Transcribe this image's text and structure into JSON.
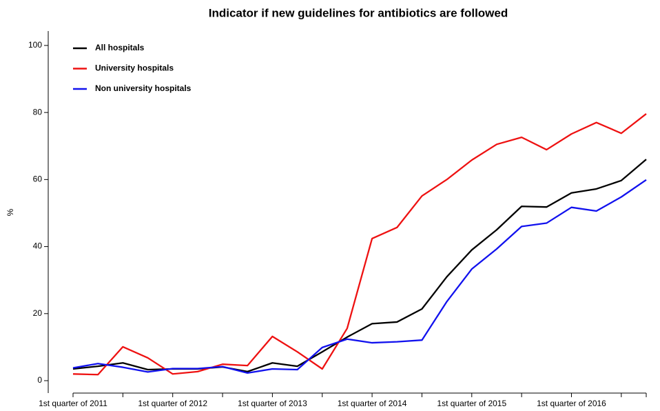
{
  "chart_data": {
    "type": "line",
    "title": "Indicator if new guidelines for antibiotics are followed",
    "ylabel": "%",
    "categories": [
      "1st quarter of 2011",
      null,
      null,
      null,
      "1st quarter of 2012",
      null,
      null,
      null,
      "1st quarter of 2013",
      null,
      null,
      null,
      "1st quarter of 2014",
      null,
      null,
      null,
      "1st quarter of 2015",
      null,
      null,
      null,
      "1st quarter of 2016",
      null,
      null,
      null
    ],
    "series": [
      {
        "name": "All hospitals",
        "color": "#000000",
        "values": [
          3.5,
          4.3,
          5.3,
          3.3,
          3.5,
          3.5,
          4.1,
          2.7,
          5.3,
          4.3,
          8.6,
          13,
          17,
          17.5,
          21.4,
          31,
          39,
          45,
          52,
          51.8,
          56,
          57.2,
          59.7,
          66
        ]
      },
      {
        "name": "University hospitals",
        "color": "#ee1111",
        "values": [
          2,
          1.8,
          10.1,
          6.8,
          2,
          2.7,
          4.9,
          4.5,
          13.2,
          8.6,
          3.5,
          15.6,
          42.4,
          45.7,
          55.1,
          60,
          65.8,
          70.5,
          72.6,
          68.9,
          73.6,
          77,
          73.8,
          79.6
        ]
      },
      {
        "name": "Non university hospitals",
        "color": "#1111ee",
        "values": [
          3.8,
          5.1,
          4,
          2.6,
          3.6,
          3.6,
          4.2,
          2.3,
          3.5,
          3.3,
          9.9,
          12.4,
          11.3,
          11.6,
          12.1,
          23.6,
          33.3,
          39.3,
          46,
          47,
          51.7,
          50.6,
          54.8,
          59.9
        ]
      }
    ],
    "ylim": [
      -3.7,
      104.3
    ],
    "yticks": [
      0,
      20,
      40,
      60,
      80,
      100
    ],
    "legend": "upper left",
    "grid": false
  }
}
